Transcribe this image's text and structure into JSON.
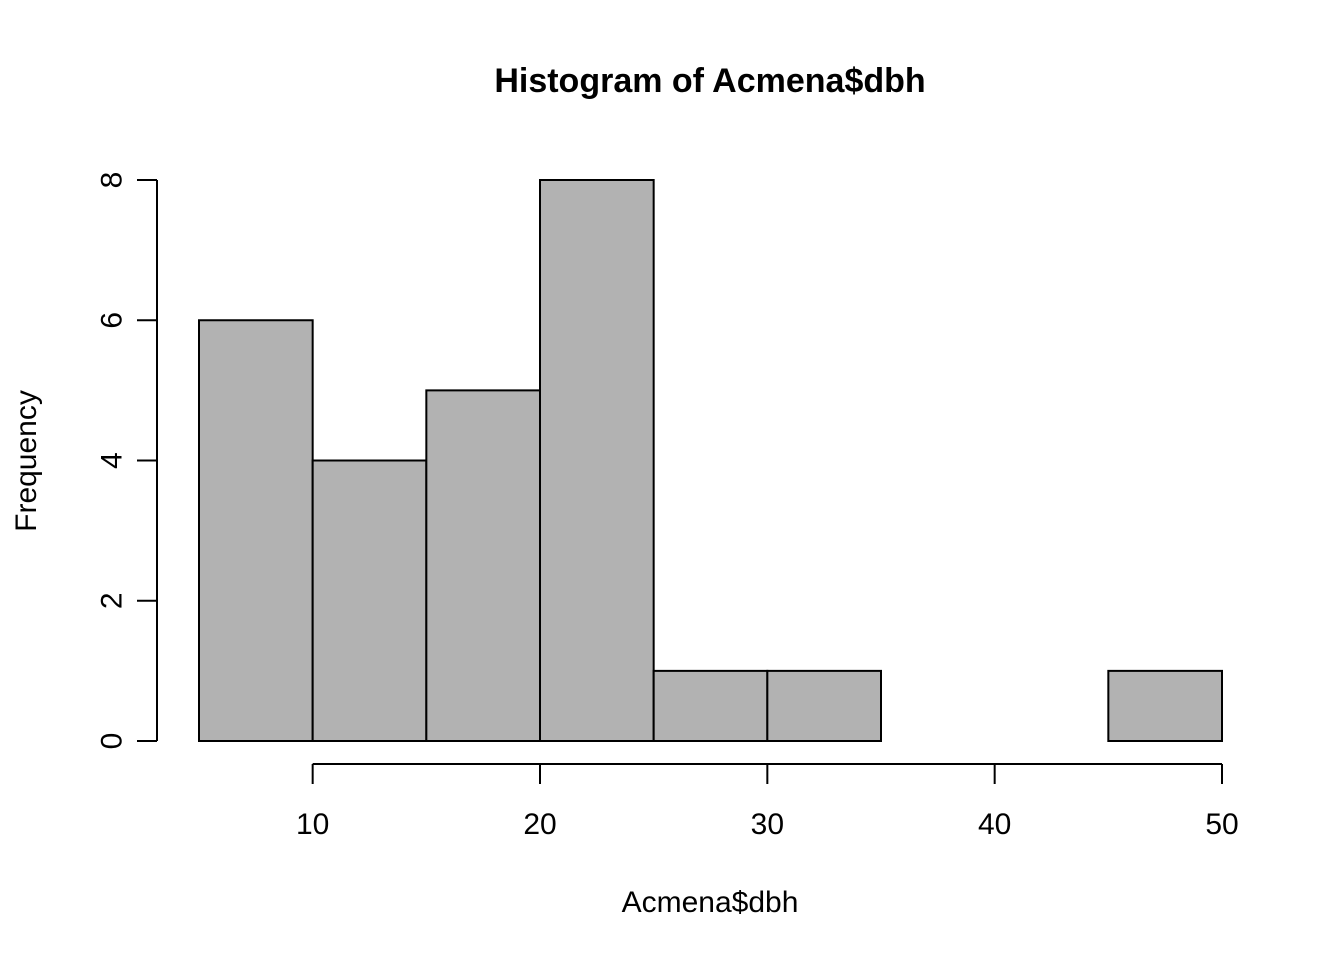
{
  "chart_data": {
    "type": "bar",
    "title": "Histogram of Acmena$dbh",
    "xlabel": "Acmena$dbh",
    "ylabel": "Frequency",
    "bins": [
      {
        "start": 5,
        "end": 10,
        "count": 6
      },
      {
        "start": 10,
        "end": 15,
        "count": 4
      },
      {
        "start": 15,
        "end": 20,
        "count": 5
      },
      {
        "start": 20,
        "end": 25,
        "count": 8
      },
      {
        "start": 25,
        "end": 30,
        "count": 1
      },
      {
        "start": 30,
        "end": 35,
        "count": 1
      },
      {
        "start": 35,
        "end": 40,
        "count": 0
      },
      {
        "start": 40,
        "end": 45,
        "count": 0
      },
      {
        "start": 45,
        "end": 50,
        "count": 1
      }
    ],
    "xlim": [
      5,
      50
    ],
    "ylim": [
      0,
      8
    ],
    "xticks": [
      10,
      20,
      30,
      40,
      50
    ],
    "yticks": [
      0,
      2,
      4,
      6,
      8
    ],
    "bar_color": "#b2b2b2",
    "grid": false
  }
}
